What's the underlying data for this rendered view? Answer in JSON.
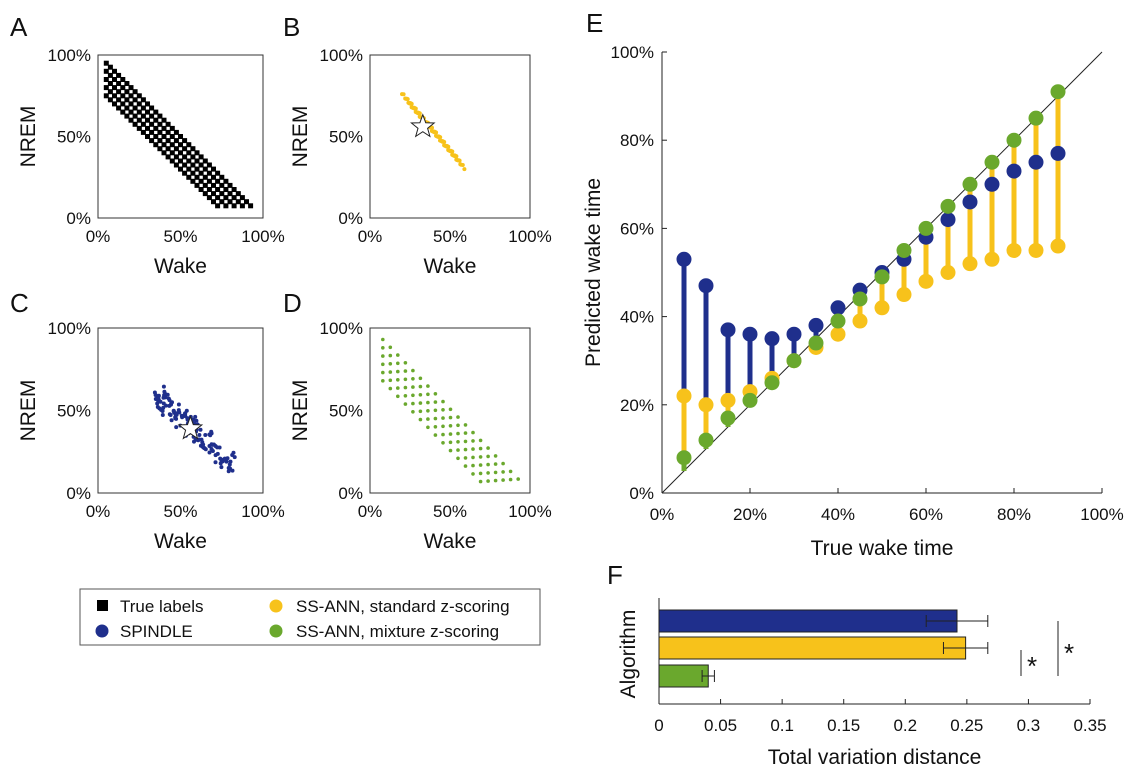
{
  "panel_labels": {
    "A": "A",
    "B": "B",
    "C": "C",
    "D": "D",
    "E": "E",
    "F": "F"
  },
  "colors": {
    "true": "#000000",
    "spindle": "#1f2f8c",
    "standard": "#f7c21b",
    "mixture": "#6aa82d"
  },
  "small_axes": {
    "xlabel": "Wake",
    "ylabel": "NREM",
    "xticks": [
      "0%",
      "50%",
      "100%"
    ],
    "yticks": [
      "0%",
      "50%",
      "100%"
    ]
  },
  "legend": {
    "true_labels": "True labels",
    "spindle": "SPINDLE",
    "standard": "SS-ANN, standard z-scoring",
    "mixture": "SS-ANN, mixture z-scoring"
  },
  "panelE": {
    "xlabel": "True wake time",
    "ylabel": "Predicted wake time",
    "xticks": [
      "0%",
      "20%",
      "40%",
      "60%",
      "80%",
      "100%"
    ],
    "yticks": [
      "0%",
      "20%",
      "40%",
      "60%",
      "80%",
      "100%"
    ]
  },
  "panelF": {
    "xlabel": "Total variation distance",
    "ylabel": "Algorithm",
    "xticks": [
      "0",
      "0.05",
      "0.1",
      "0.15",
      "0.2",
      "0.25",
      "0.3",
      "0.35"
    ],
    "sig1": "*",
    "sig2": "*"
  },
  "chart_data": [
    {
      "type": "scatter",
      "panel": "A",
      "series_name": "True labels",
      "xlabel": "Wake",
      "ylabel": "NREM",
      "xlim": [
        0,
        1
      ],
      "ylim": [
        0,
        1
      ],
      "description_of_points": "grid of true labels: wake from 0.05 to 0.95, NREM from 0.05 up to 1-wake",
      "wake_range": [
        0.05,
        0.95
      ],
      "step": 0.025
    },
    {
      "type": "scatter",
      "panel": "B",
      "series_name": "SS-ANN, standard z-scoring",
      "xlabel": "Wake",
      "ylabel": "NREM",
      "xlim": [
        0,
        1
      ],
      "ylim": [
        0,
        1
      ],
      "centroid": [
        0.33,
        0.56
      ],
      "cloud": {
        "wake": [
          0.19,
          0.57
        ],
        "nrem": [
          0.35,
          0.77
        ]
      }
    },
    {
      "type": "scatter",
      "panel": "C",
      "series_name": "SPINDLE",
      "xlabel": "Wake",
      "ylabel": "NREM",
      "xlim": [
        0,
        1
      ],
      "ylim": [
        0,
        1
      ],
      "centroid": [
        0.56,
        0.39
      ],
      "cloud": {
        "wake": [
          0.34,
          0.82
        ],
        "nrem": [
          0.15,
          0.63
        ]
      }
    },
    {
      "type": "scatter",
      "panel": "D",
      "series_name": "SS-ANN, mixture z-scoring",
      "xlabel": "Wake",
      "ylabel": "NREM",
      "xlim": [
        0,
        1
      ],
      "ylim": [
        0,
        1
      ],
      "cloud": {
        "wake": [
          0.07,
          0.97
        ],
        "nrem": [
          0.04,
          0.93
        ]
      }
    },
    {
      "type": "scatter",
      "panel": "E",
      "xlabel": "True wake time",
      "ylabel": "Predicted wake time",
      "xlim": [
        0,
        100
      ],
      "ylim": [
        0,
        100
      ],
      "x": [
        5,
        10,
        15,
        20,
        25,
        30,
        35,
        40,
        45,
        50,
        55,
        60,
        65,
        70,
        75,
        80,
        85,
        90
      ],
      "series": [
        {
          "name": "SPINDLE",
          "values": [
            53,
            47,
            37,
            36,
            35,
            36,
            38,
            42,
            46,
            50,
            53,
            58,
            62,
            66,
            70,
            73,
            75,
            77
          ]
        },
        {
          "name": "SS-ANN, standard z-scoring",
          "values": [
            22,
            20,
            21,
            23,
            26,
            30,
            33,
            36,
            39,
            42,
            45,
            48,
            50,
            52,
            53,
            55,
            55,
            56
          ]
        },
        {
          "name": "SS-ANN, mixture z-scoring",
          "values": [
            8,
            12,
            17,
            21,
            25,
            30,
            34,
            39,
            44,
            49,
            55,
            60,
            65,
            70,
            75,
            80,
            85,
            91
          ]
        }
      ]
    },
    {
      "type": "bar",
      "panel": "F",
      "orientation": "horizontal",
      "xlabel": "Total variation distance",
      "ylabel": "Algorithm",
      "xlim": [
        0,
        0.35
      ],
      "series": [
        {
          "name": "SPINDLE",
          "value": 0.242,
          "error": 0.025
        },
        {
          "name": "SS-ANN, standard z-scoring",
          "value": 0.249,
          "error": 0.018
        },
        {
          "name": "SS-ANN, mixture z-scoring",
          "value": 0.04,
          "error": 0.005
        }
      ]
    }
  ]
}
